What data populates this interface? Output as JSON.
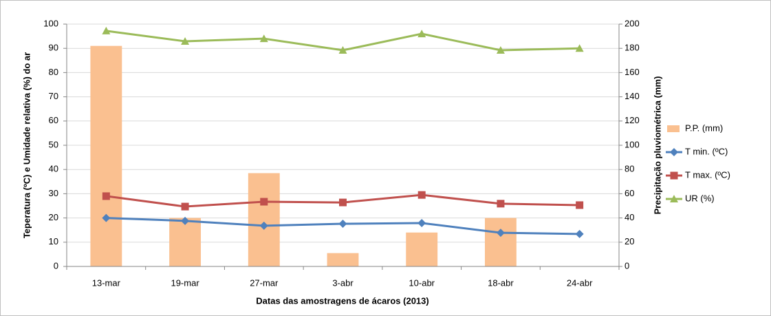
{
  "chart_data": {
    "type": "combo",
    "x_label": "Datas das amostragens de ácaros (2013)",
    "y_label": "Teperatura (ºC) e Umidade relativa (%) do ar",
    "y2_label": "Precipitação pluviométrica (mm)",
    "categories": [
      "13-mar",
      "19-mar",
      "27-mar",
      "3-abr",
      "10-abr",
      "18-abr",
      "24-abr"
    ],
    "series": [
      {
        "name": "P.P. (mm)",
        "type": "bar",
        "axis": "y2",
        "color": "#fac090",
        "values": [
          182,
          40,
          77,
          11,
          28,
          40,
          0
        ]
      },
      {
        "name": "T min. (ºC)",
        "type": "line",
        "marker": "diamond",
        "color": "#4f81bd",
        "values": [
          20,
          18.8,
          16.8,
          17.6,
          17.9,
          13.9,
          13.4
        ]
      },
      {
        "name": "T max. (ºC)",
        "type": "line",
        "marker": "square",
        "color": "#c0504d",
        "values": [
          29,
          24.7,
          26.7,
          26.4,
          29.5,
          25.9,
          25.3
        ]
      },
      {
        "name": "UR (%)",
        "type": "line",
        "marker": "triangle",
        "color": "#9bbb59",
        "values": [
          97.2,
          92.9,
          94,
          89.2,
          96,
          89.2,
          90
        ]
      }
    ],
    "ylim": [
      0,
      100
    ],
    "yticks": [
      0,
      10,
      20,
      30,
      40,
      50,
      60,
      70,
      80,
      90,
      100
    ],
    "y2lim": [
      0,
      200
    ],
    "y2ticks": [
      0,
      20,
      40,
      60,
      80,
      100,
      120,
      140,
      160,
      180,
      200
    ],
    "grid": true,
    "legend": "right"
  }
}
